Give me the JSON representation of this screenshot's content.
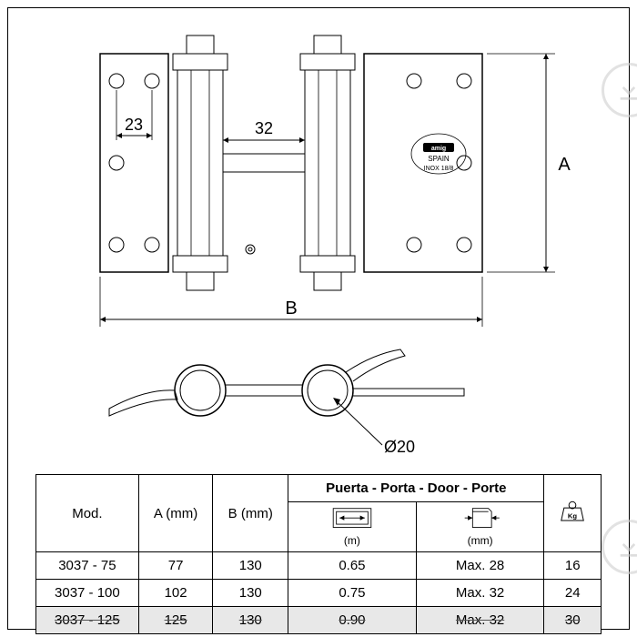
{
  "diagram": {
    "stroke_color": "#000000",
    "fill_color": "#ffffff",
    "stroke_width": 1.2,
    "dim_font_size": 18,
    "label_font": "Arial",
    "dims": {
      "hole_spacing": "23",
      "barrel_gap": "32",
      "height_label": "A",
      "width_label": "B",
      "diameter": "Ø20"
    },
    "stamp": {
      "line1": "amig",
      "line2": "SPAIN",
      "line3": "INOX 18/8"
    }
  },
  "table": {
    "door_header": "Puerta - Porta - Door - Porte",
    "columns": {
      "mod": "Mod.",
      "a": "A (mm)",
      "b": "B (mm)",
      "width_unit": "(m)",
      "thick_unit": "(mm)",
      "weight": "Kg"
    },
    "rows": [
      {
        "mod": "3037 - 75",
        "a": "77",
        "b": "130",
        "w": "0.65",
        "t": "Max. 28",
        "kg": "16",
        "strike": false
      },
      {
        "mod": "3037 - 100",
        "a": "102",
        "b": "130",
        "w": "0.75",
        "t": "Max. 32",
        "kg": "24",
        "strike": false
      },
      {
        "mod": "3037 - 125",
        "a": "125",
        "b": "130",
        "w": "0.90",
        "t": "Max. 32",
        "kg": "30",
        "strike": true
      }
    ]
  },
  "colors": {
    "watermark": "#c8c8c8",
    "bg": "#ffffff",
    "line": "#000000"
  }
}
